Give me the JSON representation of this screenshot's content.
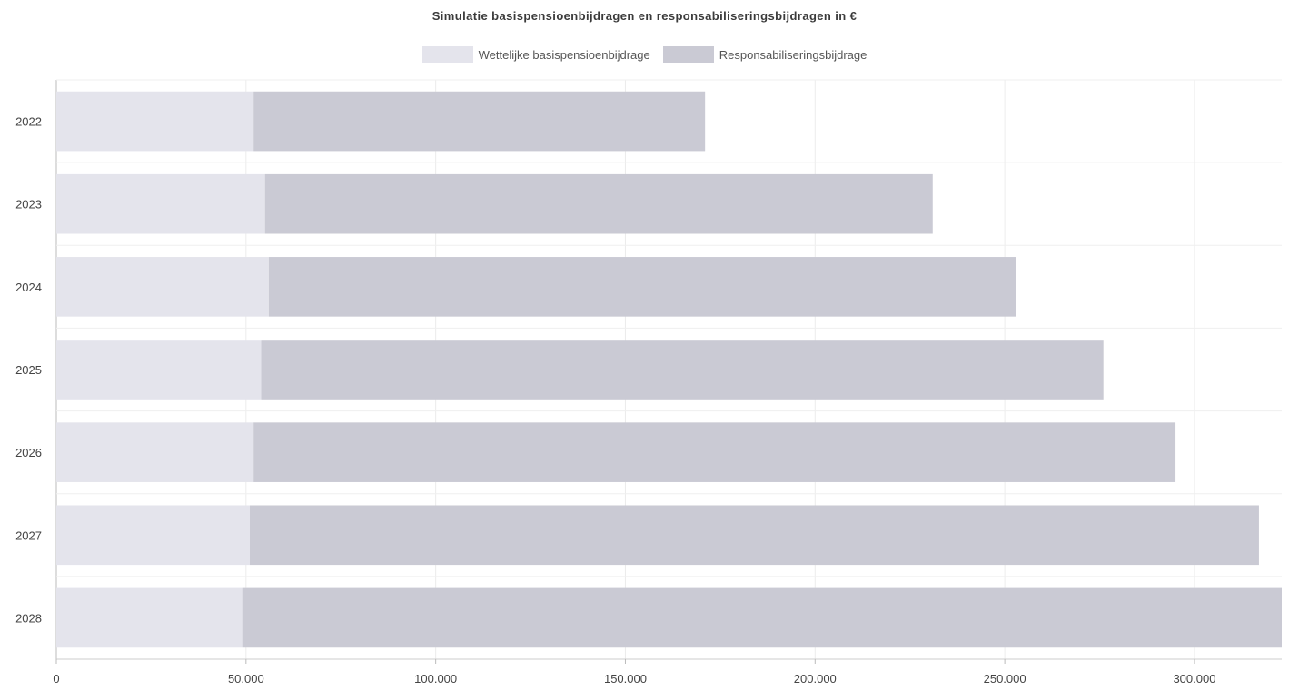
{
  "chart_data": {
    "type": "bar",
    "orientation": "horizontal",
    "stacked": true,
    "title": "Simulatie basispensioenbijdragen en responsabiliseringsbijdragen in €",
    "categories": [
      "2022",
      "2023",
      "2024",
      "2025",
      "2026",
      "2027",
      "2028"
    ],
    "series": [
      {
        "name": "Wettelijke basispensioenbijdrage",
        "color": "#e4e4ec",
        "values": [
          52000,
          55000,
          56000,
          54000,
          52000,
          51000,
          49000
        ]
      },
      {
        "name": "Responsabiliseringsbijdrage",
        "color": "#cacad4",
        "values": [
          119000,
          176000,
          197000,
          222000,
          243000,
          266000,
          274000
        ]
      }
    ],
    "x_ticks": [
      0,
      50000,
      100000,
      150000,
      200000,
      250000,
      300000
    ],
    "x_tick_labels": [
      "0",
      "50.000",
      "100.000",
      "150.000",
      "200.000",
      "250.000",
      "300.000"
    ],
    "xlim": [
      0,
      323000
    ],
    "grid": true,
    "legend_position": "top-center"
  }
}
